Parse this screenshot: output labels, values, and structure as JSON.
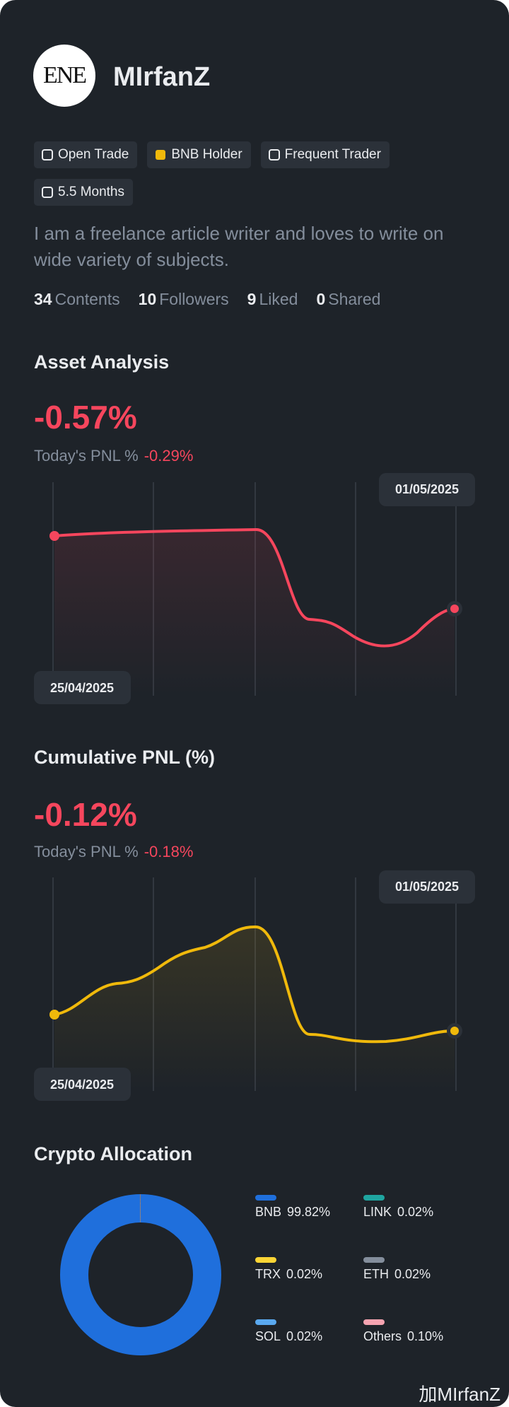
{
  "profile": {
    "avatar_text": "ENE",
    "name": "MIrfanZ",
    "badges": [
      "Open Trade",
      "BNB Holder",
      "Frequent Trader",
      "5.5 Months"
    ],
    "bio": "I am a freelance article writer and loves to write on wide variety of subjects.",
    "stats": [
      {
        "value": 34,
        "label": "Contents"
      },
      {
        "value": 10,
        "label": "Followers"
      },
      {
        "value": 9,
        "label": "Liked"
      },
      {
        "value": 0,
        "label": "Shared"
      }
    ]
  },
  "asset_analysis": {
    "title": "Asset Analysis",
    "value": "-0.57%",
    "today_label": "Today's PNL %",
    "today_value": "-0.29%",
    "start_date": "25/04/2025",
    "end_date": "01/05/2025"
  },
  "cumulative_pnl": {
    "title": "Cumulative PNL (%)",
    "value": "-0.12%",
    "today_label": "Today's PNL %",
    "today_value": "-0.18%",
    "start_date": "25/04/2025",
    "end_date": "01/05/2025"
  },
  "crypto_allocation": {
    "title": "Crypto Allocation",
    "items": [
      {
        "name": "BNB",
        "value": 99.82,
        "value_label": "99.82%",
        "color": "#1f6fdc"
      },
      {
        "name": "LINK",
        "value": 0.02,
        "value_label": "0.02%",
        "color": "#1fa5a0"
      },
      {
        "name": "TRX",
        "value": 0.02,
        "value_label": "0.02%",
        "color": "#fcd535"
      },
      {
        "name": "ETH",
        "value": 0.02,
        "value_label": "0.02%",
        "color": "#848e9c"
      },
      {
        "name": "SOL",
        "value": 0.02,
        "value_label": "0.02%",
        "color": "#5aa9f0"
      },
      {
        "name": "Others",
        "value": 0.1,
        "value_label": "0.10%",
        "color": "#f5a3b0"
      }
    ]
  },
  "watermark": "加MIrfanZ"
}
